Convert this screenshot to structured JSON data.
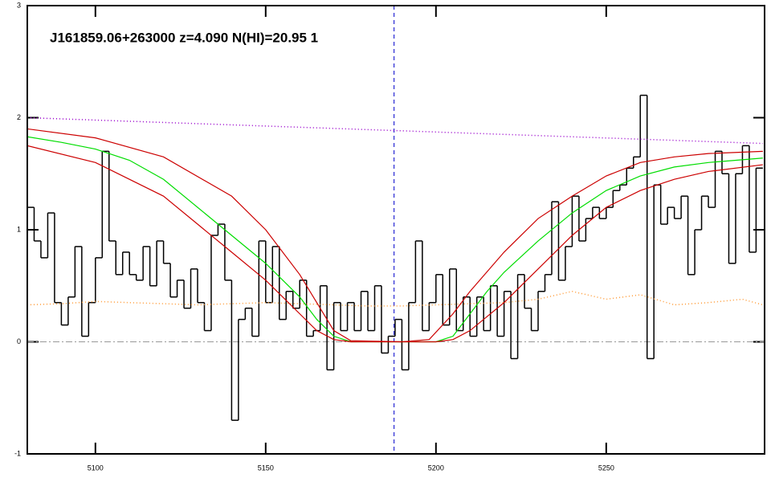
{
  "chart_data": {
    "type": "line",
    "title": "J161859.06+263000 z=4.090 N(HI)=20.95 1",
    "xlim": [
      5080,
      5296.5
    ],
    "ylim": [
      -1,
      3
    ],
    "xticks": [
      5100,
      5150,
      5200,
      5250
    ],
    "yticks": [
      -1,
      0,
      1,
      2,
      3
    ],
    "hline": 0,
    "vline": 5187.7,
    "series": [
      {
        "color": "#000000",
        "step": true,
        "dash": "solid",
        "x": [
          5080,
          5082,
          5084,
          5086,
          5088,
          5090,
          5092,
          5094,
          5096,
          5098,
          5100,
          5102,
          5104,
          5106,
          5108,
          5110,
          5112,
          5114,
          5116,
          5118,
          5120,
          5122,
          5124,
          5126,
          5128,
          5130,
          5132,
          5134,
          5136,
          5138,
          5140,
          5142,
          5144,
          5146,
          5148,
          5150,
          5152,
          5154,
          5156,
          5158,
          5160,
          5162,
          5164,
          5166,
          5168,
          5170,
          5172,
          5174,
          5176,
          5178,
          5180,
          5182,
          5184,
          5186,
          5188,
          5190,
          5192,
          5194,
          5196,
          5198,
          5200,
          5202,
          5204,
          5206,
          5208,
          5210,
          5212,
          5214,
          5216,
          5218,
          5220,
          5222,
          5224,
          5226,
          5228,
          5230,
          5232,
          5234,
          5236,
          5238,
          5240,
          5242,
          5244,
          5246,
          5248,
          5250,
          5252,
          5254,
          5256,
          5258,
          5260,
          5262,
          5264,
          5266,
          5268,
          5270,
          5272,
          5274,
          5276,
          5278,
          5280,
          5282,
          5284,
          5286,
          5288,
          5290,
          5292,
          5294
        ],
        "values": [
          1.2,
          0.9,
          0.75,
          1.15,
          0.35,
          0.15,
          0.4,
          0.85,
          0.05,
          0.35,
          0.75,
          1.7,
          0.9,
          0.6,
          0.8,
          0.6,
          0.55,
          0.85,
          0.5,
          0.9,
          0.7,
          0.4,
          0.55,
          0.3,
          0.65,
          0.35,
          0.1,
          0.95,
          1.05,
          0.55,
          -0.7,
          0.2,
          0.3,
          0.05,
          0.9,
          0.35,
          0.85,
          0.2,
          0.45,
          0.3,
          0.55,
          0.05,
          0.1,
          0.5,
          -0.25,
          0.35,
          0.1,
          0.35,
          0.1,
          0.45,
          0.1,
          0.5,
          -0.1,
          0.05,
          0.2,
          -0.25,
          0.35,
          0.9,
          0.1,
          0.35,
          0.6,
          0.15,
          0.65,
          0.1,
          0.4,
          0.05,
          0.4,
          0.1,
          0.5,
          0.05,
          0.45,
          -0.15,
          0.6,
          0.3,
          0.1,
          0.45,
          0.6,
          1.25,
          0.55,
          0.85,
          1.3,
          0.9,
          1.1,
          1.2,
          1.1,
          1.2,
          1.35,
          1.4,
          1.55,
          1.65,
          2.2,
          -0.15,
          1.4,
          1.05,
          1.2,
          1.1,
          1.3,
          0.6,
          1.0,
          1.3,
          1.2,
          1.7,
          1.5,
          0.7,
          1.5,
          1.75,
          0.8,
          1.55
        ]
      },
      {
        "color": "#ff9933",
        "step": false,
        "dash": "dotted",
        "x": [
          5080,
          5090,
          5100,
          5110,
          5120,
          5130,
          5140,
          5150,
          5160,
          5170,
          5180,
          5190,
          5200,
          5210,
          5220,
          5230,
          5240,
          5250,
          5260,
          5270,
          5280,
          5290,
          5296
        ],
        "values": [
          0.33,
          0.34,
          0.36,
          0.35,
          0.34,
          0.33,
          0.34,
          0.35,
          0.34,
          0.33,
          0.32,
          0.32,
          0.33,
          0.34,
          0.35,
          0.38,
          0.45,
          0.38,
          0.42,
          0.33,
          0.35,
          0.38,
          0.33
        ]
      },
      {
        "color": "#9900cc",
        "step": false,
        "dash": "dotted",
        "x": [
          5080,
          5296
        ],
        "values": [
          2.0,
          1.77
        ]
      },
      {
        "color": "#00dd00",
        "step": false,
        "dash": "solid",
        "x": [
          5080,
          5090,
          5100,
          5110,
          5120,
          5130,
          5140,
          5150,
          5160,
          5165,
          5170,
          5175,
          5180,
          5190,
          5200,
          5205,
          5210,
          5215,
          5220,
          5230,
          5240,
          5250,
          5260,
          5270,
          5280,
          5296
        ],
        "values": [
          1.83,
          1.78,
          1.72,
          1.62,
          1.45,
          1.2,
          0.95,
          0.7,
          0.4,
          0.2,
          0.05,
          0,
          0,
          0,
          0,
          0.05,
          0.25,
          0.45,
          0.62,
          0.9,
          1.15,
          1.35,
          1.48,
          1.56,
          1.6,
          1.64
        ]
      },
      {
        "color": "#cc0000",
        "step": false,
        "dash": "solid",
        "x": [
          5080,
          5100,
          5120,
          5140,
          5150,
          5160,
          5165,
          5170,
          5175,
          5190,
          5198,
          5205,
          5210,
          5220,
          5230,
          5240,
          5250,
          5260,
          5270,
          5280,
          5296
        ],
        "values": [
          1.9,
          1.82,
          1.65,
          1.3,
          1.0,
          0.6,
          0.35,
          0.1,
          0.01,
          0,
          0.02,
          0.25,
          0.45,
          0.8,
          1.1,
          1.3,
          1.48,
          1.6,
          1.65,
          1.68,
          1.7
        ]
      },
      {
        "color": "#cc0000",
        "step": false,
        "dash": "solid",
        "x": [
          5080,
          5100,
          5120,
          5130,
          5140,
          5150,
          5160,
          5165,
          5170,
          5175,
          5200,
          5205,
          5210,
          5220,
          5230,
          5240,
          5250,
          5260,
          5270,
          5280,
          5296
        ],
        "values": [
          1.75,
          1.6,
          1.3,
          1.05,
          0.8,
          0.55,
          0.25,
          0.1,
          0.02,
          0,
          0,
          0.02,
          0.1,
          0.35,
          0.65,
          0.95,
          1.2,
          1.35,
          1.45,
          1.52,
          1.58
        ]
      }
    ]
  }
}
